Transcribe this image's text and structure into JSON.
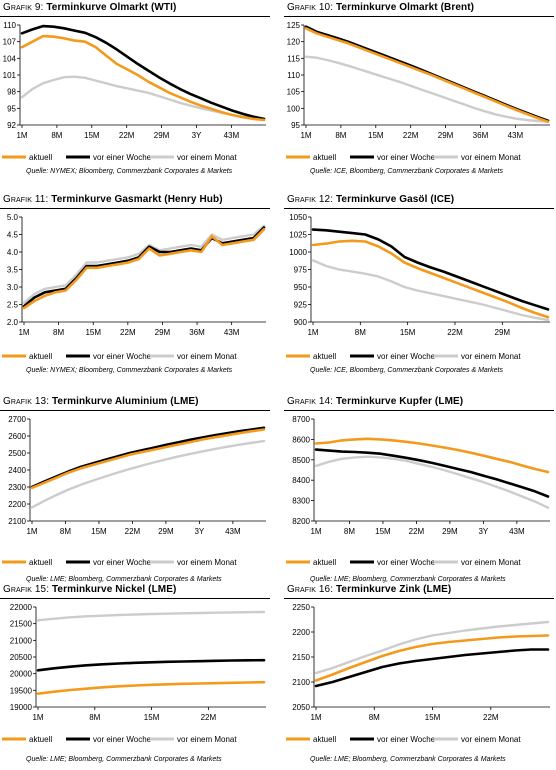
{
  "legend_labels": [
    "aktuell",
    "vor einer Woche",
    "vor einem Monat"
  ],
  "colors": {
    "aktuell": "#f39a1c",
    "vor einer Woche": "#000000",
    "vor einem Monat": "#cccccc"
  },
  "charts": [
    {
      "id": "p9",
      "prefix": "Grafik 9:",
      "name": "Terminkurve Olmarkt (WTI)",
      "source": "Quelle: NYMEX; Bloomberg, Commerzbank Corporates & Markets",
      "chart_data": {
        "type": "line",
        "x_tick_labels": [
          "1M",
          "8M",
          "15M",
          "22M",
          "29M",
          "3Y",
          "43M"
        ],
        "ylim": [
          92,
          110
        ],
        "y_ticks": [
          92,
          95,
          98,
          101,
          104,
          107,
          110
        ],
        "series": [
          {
            "name": "aktuell",
            "values": [
              106,
              107,
              108,
              107.9,
              107.6,
              107.2,
              107,
              106,
              104.5,
              103,
              102,
              101,
              99.8,
              98.8,
              97.8,
              97,
              96.2,
              95.5,
              94.9,
              94.3,
              93.8,
              93.4,
              93.1,
              92.9
            ]
          },
          {
            "name": "vor einer Woche",
            "values": [
              108.5,
              109.2,
              109.8,
              109.7,
              109.4,
              109,
              108.6,
              107.8,
              106.8,
              105.6,
              104.3,
              103,
              101.8,
              100.6,
              99.5,
              98.5,
              97.6,
              96.8,
              96,
              95.3,
              94.6,
              94,
              93.5,
              93.1
            ]
          },
          {
            "name": "vor einem Monat",
            "values": [
              97,
              98.5,
              99.5,
              100.1,
              100.6,
              100.7,
              100.5,
              100,
              99.5,
              99,
              98.6,
              98.2,
              97.8,
              97.2,
              96.6,
              96,
              95.5,
              95,
              94.6,
              94.2,
              93.8,
              93.5,
              93.2,
              93
            ]
          }
        ]
      }
    },
    {
      "id": "p10",
      "prefix": "Grafik 10:",
      "name": "Terminkurve Olmarkt (Brent)",
      "source": "Quelle: ICE, Bloomberg, Commerzbank Corporates & Markets",
      "chart_data": {
        "type": "line",
        "x_tick_labels": [
          "1M",
          "8M",
          "15M",
          "22M",
          "29M",
          "36M",
          "43M"
        ],
        "ylim": [
          95,
          125
        ],
        "y_ticks": [
          95,
          100,
          105,
          110,
          115,
          120,
          125
        ],
        "series": [
          {
            "name": "aktuell",
            "values": [
              124,
              122.5,
              121.5,
              120.5,
              119.5,
              118.3,
              117.1,
              115.9,
              114.7,
              113.5,
              112.3,
              111.1,
              109.9,
              108.6,
              107.3,
              106,
              104.7,
              103.4,
              102.1,
              100.8,
              99.5,
              98.3,
              97.1,
              96
            ]
          },
          {
            "name": "vor einer Woche",
            "values": [
              124.5,
              123,
              122,
              121,
              120,
              118.8,
              117.6,
              116.4,
              115.2,
              114,
              112.8,
              111.5,
              110.2,
              108.9,
              107.6,
              106.3,
              105,
              103.7,
              102.4,
              101.1,
              99.8,
              98.6,
              97.4,
              96.3
            ]
          },
          {
            "name": "vor einem Monat",
            "values": [
              115.5,
              115.2,
              114.5,
              113.7,
              112.8,
              111.8,
              110.8,
              109.8,
              108.8,
              107.8,
              106.7,
              105.6,
              104.5,
              103.4,
              102.3,
              101.2,
              100.1,
              99.1,
              98.2,
              97.5,
              96.9,
              96.5,
              96.2,
              96
            ]
          }
        ]
      }
    },
    {
      "id": "p11",
      "prefix": "Grafik 11:",
      "name": "Terminkurve Gasmarkt (Henry Hub)",
      "source": "Quelle: NYMEX; Bloomberg, Commerzbank Corporates & Markets",
      "chart_data": {
        "type": "line",
        "x_tick_labels": [
          "1M",
          "8M",
          "15M",
          "22M",
          "29M",
          "36M",
          "43M"
        ],
        "ylim": [
          2,
          5
        ],
        "y_ticks": [
          2,
          2.5,
          3,
          3.5,
          4,
          4.5,
          5
        ],
        "y_tick_labels": [
          "2.0",
          "2.5",
          "3.0",
          "3.5",
          "4.0",
          "4.5",
          "5.0"
        ],
        "series": [
          {
            "name": "aktuell",
            "values": [
              2.4,
              2.6,
              2.75,
              2.85,
              2.9,
              3.2,
              3.55,
              3.55,
              3.6,
              3.65,
              3.7,
              3.8,
              4.1,
              3.9,
              3.95,
              4.0,
              4.05,
              4.0,
              4.45,
              4.2,
              4.25,
              4.3,
              4.35,
              4.65
            ]
          },
          {
            "name": "vor einer Woche",
            "values": [
              2.45,
              2.7,
              2.85,
              2.9,
              2.95,
              3.25,
              3.6,
              3.6,
              3.65,
              3.7,
              3.75,
              3.85,
              4.15,
              4.0,
              4.0,
              4.05,
              4.1,
              4.05,
              4.4,
              4.25,
              4.3,
              4.35,
              4.4,
              4.7
            ]
          },
          {
            "name": "vor einem Monat",
            "values": [
              2.55,
              2.8,
              2.95,
              3.0,
              3.05,
              3.35,
              3.7,
              3.7,
              3.75,
              3.8,
              3.85,
              3.95,
              4.2,
              4.05,
              4.1,
              4.15,
              4.2,
              4.15,
              4.5,
              4.35,
              4.4,
              4.45,
              4.5,
              4.75
            ]
          }
        ]
      }
    },
    {
      "id": "p12",
      "prefix": "Grafik 12:",
      "name": "Terminkurve Gasöl (ICE)",
      "source": "Quelle: ICE, Bloomberg, Commerzbank Corporates & Markets",
      "chart_data": {
        "type": "line",
        "x_tick_labels": [
          "1M",
          "8M",
          "15M",
          "22M",
          "29M"
        ],
        "ylim": [
          900,
          1050
        ],
        "y_ticks": [
          900,
          925,
          950,
          975,
          1000,
          1025,
          1050
        ],
        "series": [
          {
            "name": "aktuell",
            "values": [
              1010,
              1012,
              1015,
              1016,
              1015,
              1008,
              998,
              985,
              977,
              970,
              963,
              956,
              949,
              942,
              935,
              928,
              920,
              913,
              907
            ]
          },
          {
            "name": "vor einer Woche",
            "values": [
              1032,
              1031,
              1029,
              1027,
              1025,
              1018,
              1008,
              993,
              985,
              978,
              972,
              965,
              958,
              951,
              944,
              937,
              930,
              924,
              918
            ]
          },
          {
            "name": "vor einem Monat",
            "values": [
              988,
              980,
              975,
              972,
              969,
              965,
              958,
              950,
              945,
              941,
              937,
              933,
              929,
              925,
              920,
              915,
              910,
              906,
              903
            ]
          }
        ]
      }
    },
    {
      "id": "p13",
      "prefix": "Grafik 13:",
      "name": "Terminkurve Aluminium (LME)",
      "source": "Quelle: LME; Bloomberg, Commerzbank Corporates & Markets",
      "chart_data": {
        "type": "line",
        "x_tick_labels": [
          "1M",
          "8M",
          "15M",
          "22M",
          "29M",
          "3Y",
          "43M"
        ],
        "ylim": [
          2100,
          2700
        ],
        "y_ticks": [
          2100,
          2200,
          2300,
          2400,
          2500,
          2600,
          2700
        ],
        "series": [
          {
            "name": "aktuell",
            "values": [
              2295,
              2325,
              2355,
              2385,
              2410,
              2430,
              2450,
              2470,
              2490,
              2505,
              2520,
              2535,
              2550,
              2565,
              2580,
              2593,
              2605,
              2617,
              2628,
              2638
            ]
          },
          {
            "name": "vor einer Woche",
            "values": [
              2300,
              2332,
              2362,
              2392,
              2418,
              2440,
              2460,
              2480,
              2500,
              2516,
              2532,
              2548,
              2563,
              2578,
              2592,
              2605,
              2617,
              2628,
              2638,
              2648
            ]
          },
          {
            "name": "vor einem Monat",
            "values": [
              2180,
              2218,
              2253,
              2285,
              2313,
              2338,
              2362,
              2385,
              2406,
              2426,
              2445,
              2463,
              2480,
              2495,
              2510,
              2524,
              2537,
              2549,
              2560,
              2570
            ]
          }
        ]
      }
    },
    {
      "id": "p14",
      "prefix": "Grafik 14:",
      "name": "Terminkurve Kupfer (LME)",
      "source": "Quelle: LME; Bloomberg, Commerzbank Corporates & Markets",
      "chart_data": {
        "type": "line",
        "x_tick_labels": [
          "1M",
          "8M",
          "15M",
          "22M",
          "29M",
          "3Y",
          "43M"
        ],
        "ylim": [
          8200,
          8700
        ],
        "y_ticks": [
          8200,
          8300,
          8400,
          8500,
          8600,
          8700
        ],
        "series": [
          {
            "name": "aktuell",
            "values": [
              8580,
              8585,
              8595,
              8600,
              8603,
              8600,
              8595,
              8588,
              8580,
              8570,
              8560,
              8548,
              8535,
              8520,
              8505,
              8490,
              8472,
              8455,
              8440
            ]
          },
          {
            "name": "vor einer Woche",
            "values": [
              8550,
              8545,
              8540,
              8538,
              8535,
              8530,
              8520,
              8510,
              8498,
              8485,
              8470,
              8455,
              8440,
              8422,
              8405,
              8385,
              8365,
              8345,
              8320
            ]
          },
          {
            "name": "vor einem Monat",
            "values": [
              8470,
              8490,
              8505,
              8512,
              8515,
              8512,
              8505,
              8495,
              8480,
              8465,
              8448,
              8430,
              8410,
              8390,
              8368,
              8345,
              8320,
              8295,
              8265
            ]
          }
        ]
      }
    },
    {
      "id": "p15",
      "prefix": "Grafik 15:",
      "name": "Terminkurve Nickel (LME)",
      "source": "Quelle: LME; Bloomberg, Commerzbank Corporates & Markets",
      "chart_data": {
        "type": "line",
        "x_tick_labels": [
          "1M",
          "8M",
          "15M",
          "22M"
        ],
        "ylim": [
          19000,
          22000
        ],
        "y_ticks": [
          19000,
          19500,
          20000,
          20500,
          21000,
          21500,
          22000
        ],
        "series": [
          {
            "name": "aktuell",
            "values": [
              19400,
              19460,
              19510,
              19550,
              19590,
              19620,
              19645,
              19665,
              19680,
              19695,
              19705,
              19715,
              19725,
              19735,
              19745
            ]
          },
          {
            "name": "vor einer Woche",
            "values": [
              20100,
              20160,
              20210,
              20250,
              20280,
              20305,
              20325,
              20340,
              20355,
              20365,
              20375,
              20385,
              20395,
              20400,
              20405
            ]
          },
          {
            "name": "vor einem Monat",
            "values": [
              21600,
              21650,
              21690,
              21720,
              21740,
              21760,
              21775,
              21790,
              21800,
              21810,
              21820,
              21830,
              21838,
              21845,
              21850
            ]
          }
        ]
      }
    },
    {
      "id": "p16",
      "prefix": "Grafik 16:",
      "name": "Terminkurve Zink (LME)",
      "source": "Quelle: LME; Bloomberg, Commerzbank Corporates & Markets",
      "chart_data": {
        "type": "line",
        "x_tick_labels": [
          "1M",
          "8M",
          "15M",
          "22M"
        ],
        "ylim": [
          2050,
          2250
        ],
        "y_ticks": [
          2050,
          2100,
          2150,
          2200,
          2250
        ],
        "series": [
          {
            "name": "aktuell",
            "values": [
              2103,
              2115,
              2128,
              2140,
              2152,
              2162,
              2170,
              2176,
              2180,
              2183,
              2186,
              2189,
              2191,
              2192,
              2193
            ]
          },
          {
            "name": "vor einer Woche",
            "values": [
              2092,
              2100,
              2110,
              2120,
              2130,
              2137,
              2142,
              2146,
              2150,
              2154,
              2157,
              2160,
              2163,
              2165,
              2165
            ]
          },
          {
            "name": "vor einem Monat",
            "values": [
              2118,
              2128,
              2140,
              2152,
              2163,
              2175,
              2185,
              2193,
              2198,
              2203,
              2207,
              2211,
              2214,
              2217,
              2220
            ]
          }
        ]
      }
    }
  ]
}
